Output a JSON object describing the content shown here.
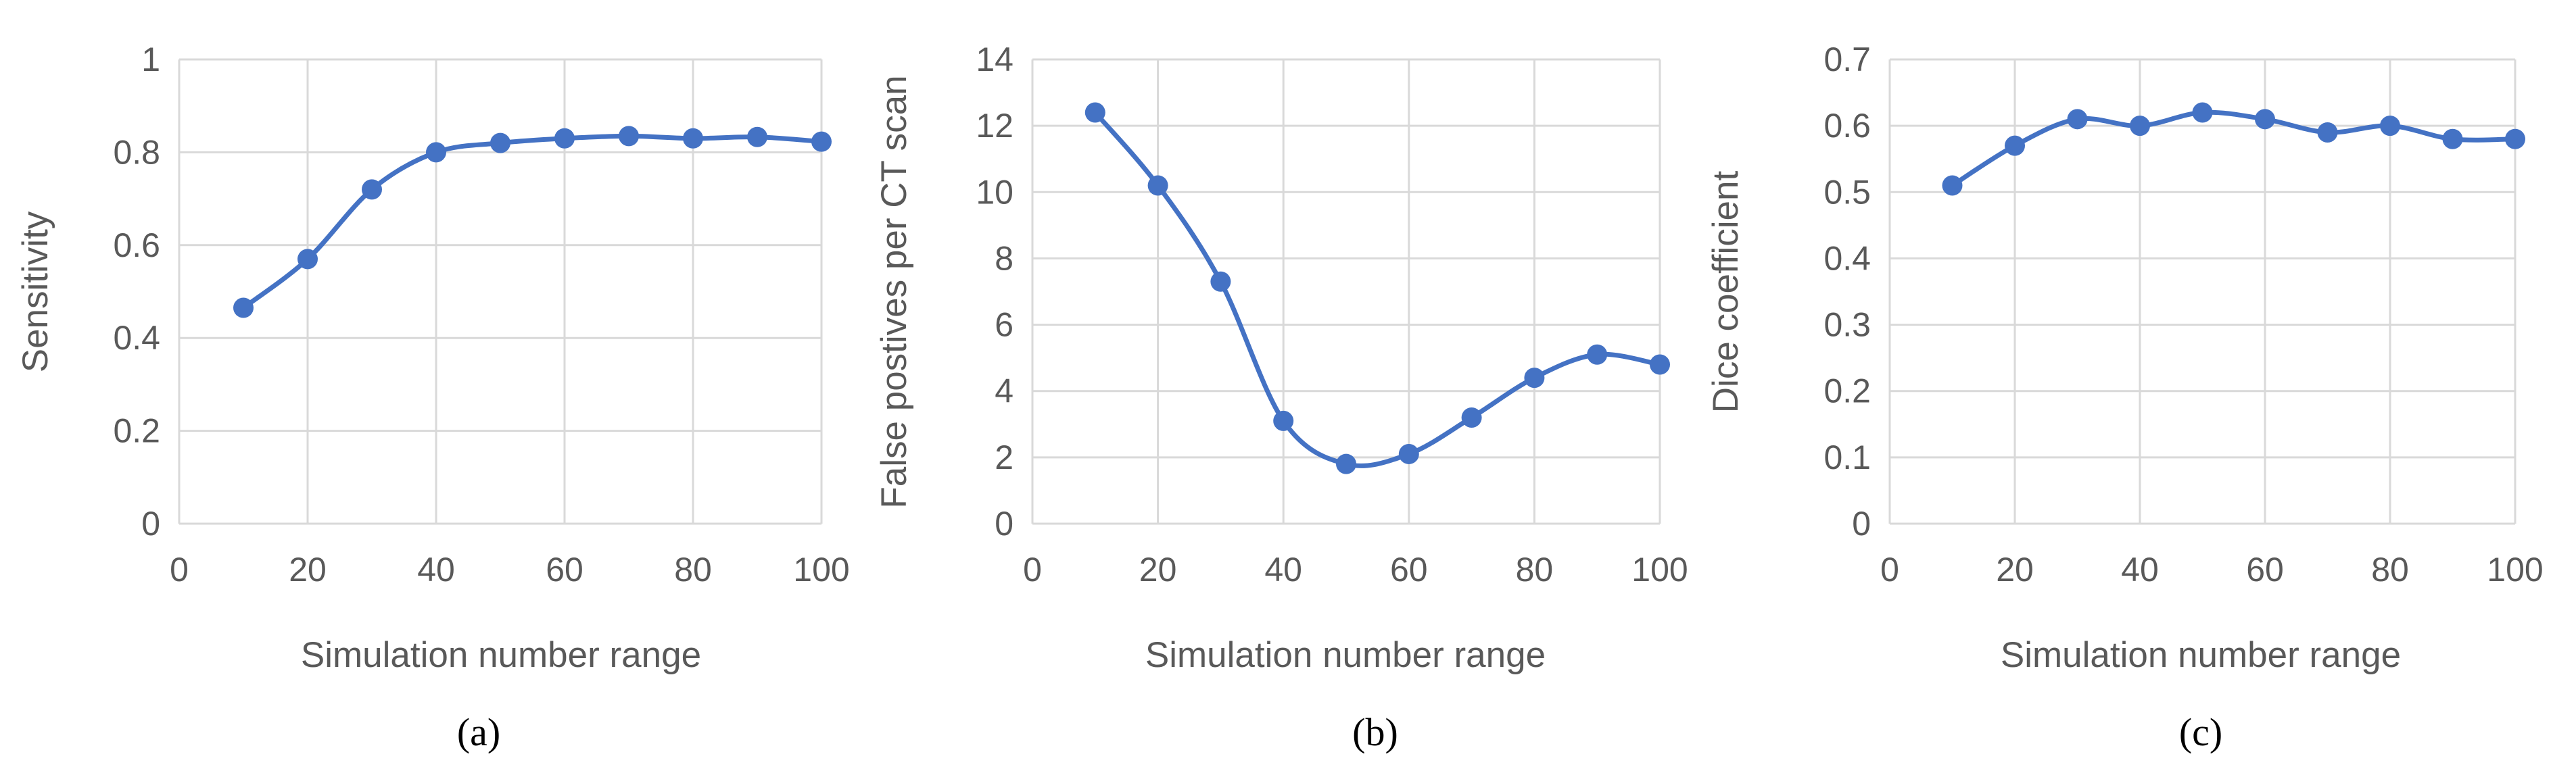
{
  "figure": {
    "line_color": "#4472c4",
    "grid_color": "#d9d9d9",
    "text_color": "#595959"
  },
  "chart_data": [
    {
      "type": "line",
      "caption": "(a)",
      "xlabel": "Simulation number range",
      "ylabel": "Sensitivity",
      "xlim": [
        0,
        100
      ],
      "ylim": [
        0,
        1
      ],
      "x_ticks": [
        0,
        20,
        40,
        60,
        80,
        100
      ],
      "y_ticks": [
        0,
        0.2,
        0.4,
        0.6,
        0.8,
        1
      ],
      "y_tick_labels": [
        "0",
        "0.2",
        "0.4",
        "0.6",
        "0.8",
        "1"
      ],
      "grid": true,
      "x": [
        10,
        20,
        30,
        40,
        50,
        60,
        70,
        80,
        90,
        100
      ],
      "y": [
        0.465,
        0.57,
        0.72,
        0.8,
        0.82,
        0.83,
        0.835,
        0.83,
        0.833,
        0.823
      ]
    },
    {
      "type": "line",
      "caption": "(b)",
      "xlabel": "Simulation number range",
      "ylabel": "False postives per CT scan",
      "xlim": [
        0,
        100
      ],
      "ylim": [
        0,
        14
      ],
      "x_ticks": [
        0,
        20,
        40,
        60,
        80,
        100
      ],
      "y_ticks": [
        0,
        2,
        4,
        6,
        8,
        10,
        12,
        14
      ],
      "y_tick_labels": [
        "0",
        "2",
        "4",
        "6",
        "8",
        "10",
        "12",
        "14"
      ],
      "grid": true,
      "x": [
        10,
        20,
        30,
        40,
        50,
        60,
        70,
        80,
        90,
        100
      ],
      "y": [
        12.4,
        10.2,
        7.3,
        3.1,
        1.8,
        2.1,
        3.2,
        4.4,
        5.1,
        4.8
      ]
    },
    {
      "type": "line",
      "caption": "(c)",
      "xlabel": "Simulation number range",
      "ylabel": "Dice coefficient",
      "xlim": [
        0,
        100
      ],
      "ylim": [
        0,
        0.7
      ],
      "x_ticks": [
        0,
        20,
        40,
        60,
        80,
        100
      ],
      "y_ticks": [
        0,
        0.1,
        0.2,
        0.3,
        0.4,
        0.5,
        0.6,
        0.7
      ],
      "y_tick_labels": [
        "0",
        "0.1",
        "0.2",
        "0.3",
        "0.4",
        "0.5",
        "0.6",
        "0.7"
      ],
      "grid": true,
      "x": [
        10,
        20,
        30,
        40,
        50,
        60,
        70,
        80,
        90,
        100
      ],
      "y": [
        0.51,
        0.57,
        0.61,
        0.6,
        0.62,
        0.61,
        0.59,
        0.6,
        0.58,
        0.58
      ]
    }
  ]
}
